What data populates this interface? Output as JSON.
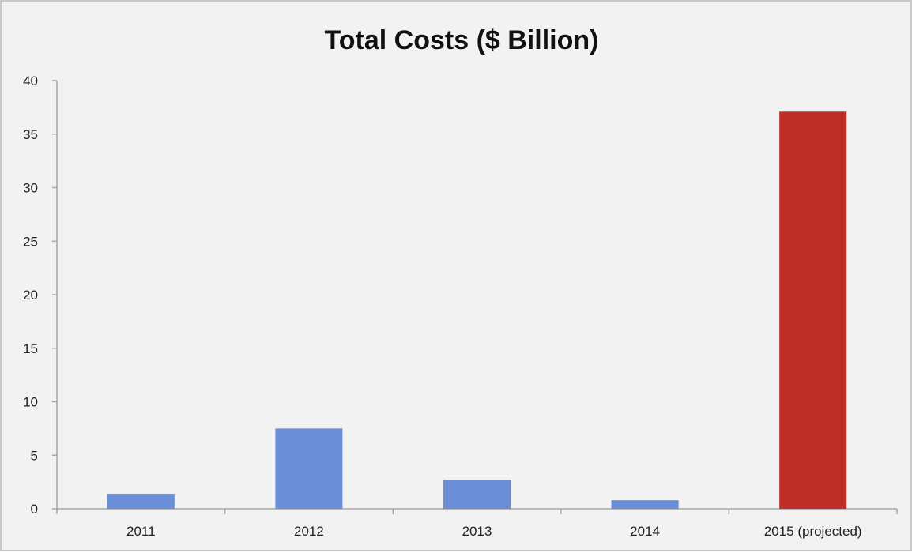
{
  "chart_data": {
    "type": "bar",
    "title": "Total Costs ($ Billion)",
    "xlabel": "",
    "ylabel": "",
    "categories": [
      "2011",
      "2012",
      "2013",
      "2014",
      "2015 (projected)"
    ],
    "values": [
      1.4,
      7.5,
      2.7,
      0.8,
      37.1
    ],
    "ylim": [
      0,
      40
    ],
    "yticks": [
      "0",
      "5",
      "10",
      "15",
      "20",
      "25",
      "30",
      "35",
      "40"
    ],
    "grid": false,
    "legend": "none",
    "colors": {
      "actual": "#6a8fd8",
      "projected": "#be2d26",
      "axis": "#a6a6a6",
      "background": "#f2f2f2"
    },
    "bar_colors": [
      "actual",
      "actual",
      "actual",
      "actual",
      "projected"
    ]
  }
}
